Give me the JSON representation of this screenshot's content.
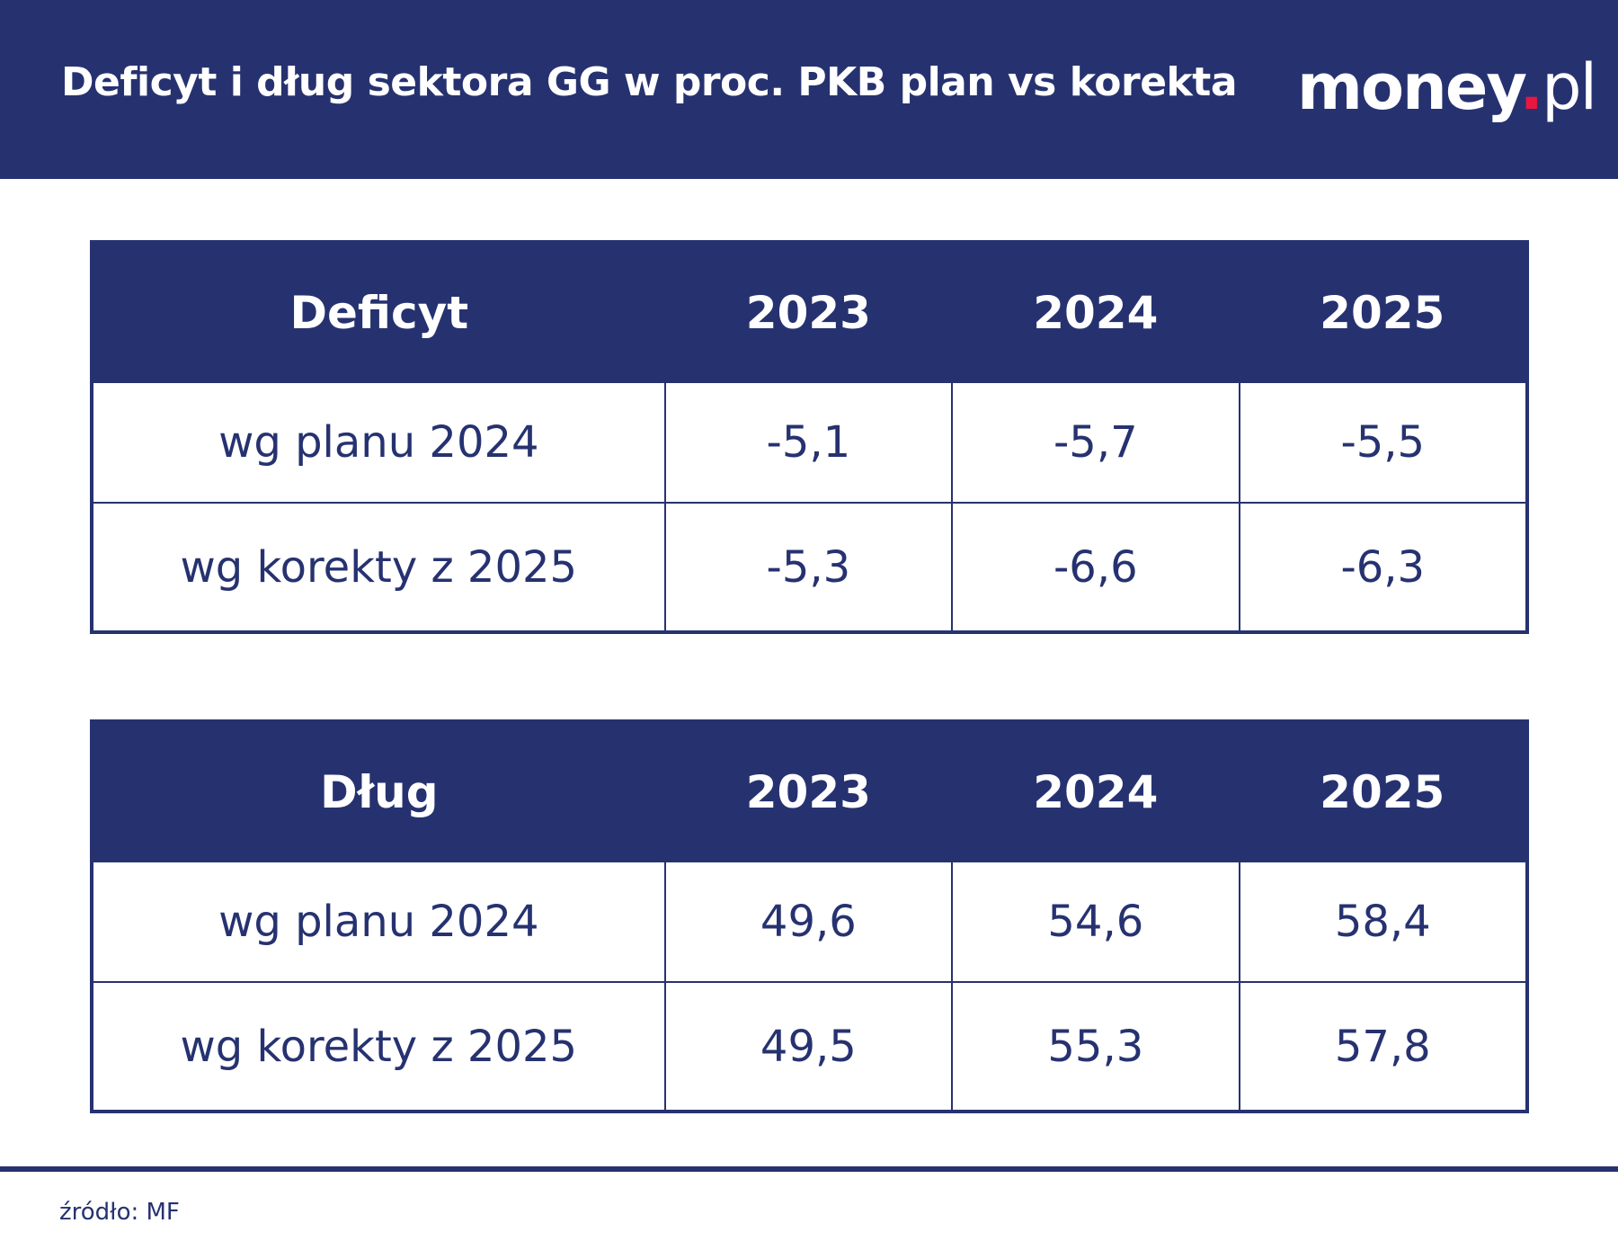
{
  "header": {
    "title": "Deficyt i dług sektora GG w proc. PKB plan vs korekta",
    "logo": {
      "main": "money",
      "dot": ".",
      "suffix": "pl"
    }
  },
  "colors": {
    "brand": "#263270",
    "logo_dot": "#e8173f"
  },
  "tables": [
    {
      "headers": [
        "Deficyt",
        "2023",
        "2024",
        "2025"
      ],
      "rows": [
        {
          "label": "wg planu 2024",
          "values": [
            "-5,1",
            "-5,7",
            "-5,5"
          ]
        },
        {
          "label": "wg korekty z 2025",
          "values": [
            "-5,3",
            "-6,6",
            "-6,3"
          ]
        }
      ]
    },
    {
      "headers": [
        "Dług",
        "2023",
        "2024",
        "2025"
      ],
      "rows": [
        {
          "label": "wg planu 2024",
          "values": [
            "49,6",
            "54,6",
            "58,4"
          ]
        },
        {
          "label": "wg korekty z 2025",
          "values": [
            "49,5",
            "55,3",
            "57,8"
          ]
        }
      ]
    }
  ],
  "footer": {
    "source": "źródło: MF"
  }
}
